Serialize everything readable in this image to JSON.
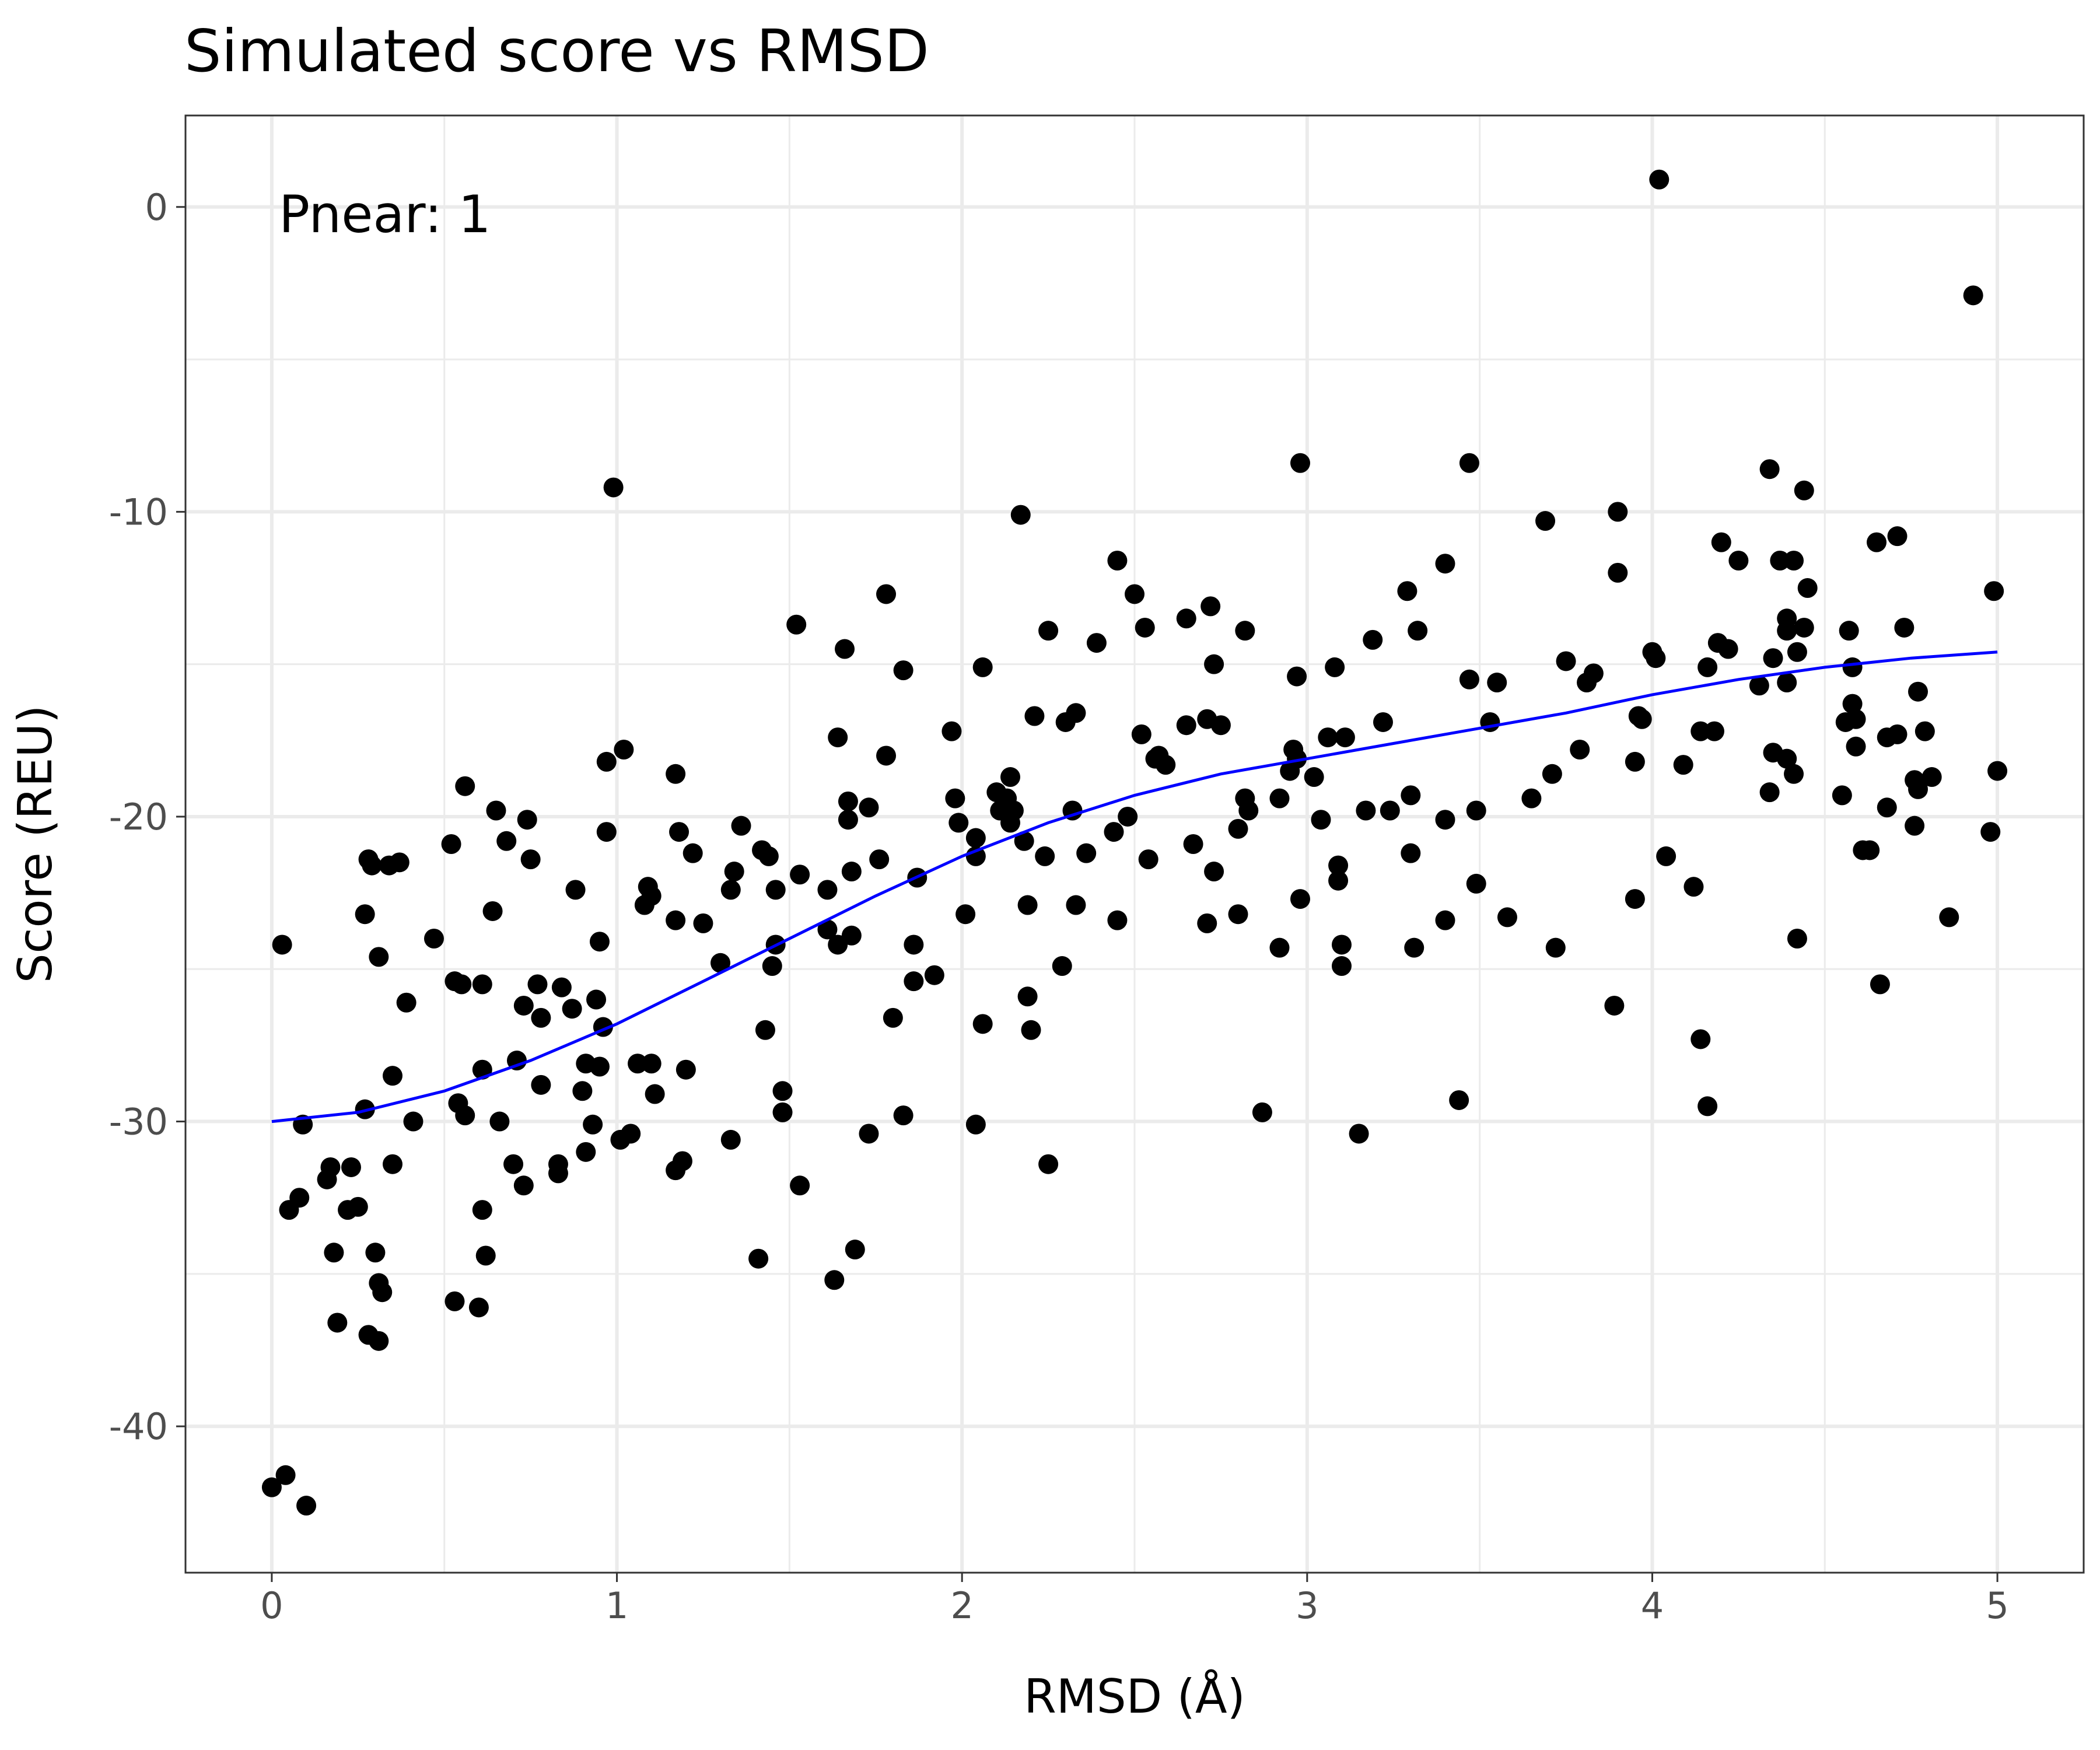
{
  "chart_data": {
    "type": "scatter",
    "title": "Simulated score vs RMSD",
    "xlabel": "RMSD (Å)",
    "ylabel": "Score (REU)",
    "annotation": "Pnear: 1",
    "xlim": [
      -0.25,
      5.25
    ],
    "ylim": [
      -44.8,
      3.0
    ],
    "x_ticks": [
      0,
      1,
      2,
      3,
      4,
      5
    ],
    "x_tick_labels": [
      "0",
      "1",
      "2",
      "3",
      "4",
      "5"
    ],
    "y_ticks": [
      -40,
      -30,
      -20,
      -10,
      0
    ],
    "y_tick_labels": [
      "-40",
      "-30",
      "-20",
      "-10",
      "0"
    ],
    "grid": true,
    "point_color": "#000000",
    "curve_color": "#0000ff",
    "points": [
      [
        0.0,
        -42.0
      ],
      [
        0.04,
        -41.6
      ],
      [
        0.1,
        -42.6
      ],
      [
        0.03,
        -24.2
      ],
      [
        0.05,
        -32.9
      ],
      [
        0.08,
        -32.5
      ],
      [
        0.09,
        -30.1
      ],
      [
        0.16,
        -31.9
      ],
      [
        0.17,
        -31.5
      ],
      [
        0.18,
        -34.3
      ],
      [
        0.19,
        -36.6
      ],
      [
        0.22,
        -32.9
      ],
      [
        0.23,
        -31.5
      ],
      [
        0.25,
        -32.8
      ],
      [
        0.27,
        -23.2
      ],
      [
        0.27,
        -29.6
      ],
      [
        0.28,
        -21.4
      ],
      [
        0.29,
        -21.6
      ],
      [
        0.28,
        -37.0
      ],
      [
        0.31,
        -37.2
      ],
      [
        0.3,
        -34.3
      ],
      [
        0.31,
        -24.6
      ],
      [
        0.31,
        -35.3
      ],
      [
        0.32,
        -35.6
      ],
      [
        0.34,
        -21.6
      ],
      [
        0.35,
        -31.4
      ],
      [
        0.35,
        -28.5
      ],
      [
        0.37,
        -21.5
      ],
      [
        0.39,
        -26.1
      ],
      [
        0.41,
        -30.0
      ],
      [
        0.47,
        -24.0
      ],
      [
        0.52,
        -20.9
      ],
      [
        0.53,
        -25.4
      ],
      [
        0.53,
        -35.9
      ],
      [
        0.54,
        -29.4
      ],
      [
        0.55,
        -25.5
      ],
      [
        0.56,
        -19.0
      ],
      [
        0.56,
        -29.8
      ],
      [
        0.6,
        -36.1
      ],
      [
        0.61,
        -32.9
      ],
      [
        0.61,
        -28.3
      ],
      [
        0.61,
        -25.5
      ],
      [
        0.62,
        -34.4
      ],
      [
        0.64,
        -23.1
      ],
      [
        0.65,
        -19.8
      ],
      [
        0.66,
        -30.0
      ],
      [
        0.68,
        -20.8
      ],
      [
        0.7,
        -31.4
      ],
      [
        0.71,
        -28.0
      ],
      [
        0.73,
        -26.2
      ],
      [
        0.73,
        -32.1
      ],
      [
        0.74,
        -20.1
      ],
      [
        0.75,
        -21.4
      ],
      [
        0.77,
        -25.5
      ],
      [
        0.78,
        -26.6
      ],
      [
        0.78,
        -28.8
      ],
      [
        0.83,
        -31.4
      ],
      [
        0.83,
        -31.7
      ],
      [
        0.84,
        -25.6
      ],
      [
        0.87,
        -26.3
      ],
      [
        0.88,
        -22.4
      ],
      [
        0.9,
        -29.0
      ],
      [
        0.91,
        -28.1
      ],
      [
        0.91,
        -31.0
      ],
      [
        0.93,
        -30.1
      ],
      [
        0.94,
        -26.0
      ],
      [
        0.95,
        -24.1
      ],
      [
        0.95,
        -28.2
      ],
      [
        0.96,
        -26.9
      ],
      [
        0.97,
        -18.2
      ],
      [
        0.97,
        -20.5
      ],
      [
        0.99,
        -9.2
      ],
      [
        1.01,
        -30.6
      ],
      [
        1.02,
        -17.8
      ],
      [
        1.04,
        -30.4
      ],
      [
        1.06,
        -28.1
      ],
      [
        1.08,
        -22.9
      ],
      [
        1.09,
        -22.3
      ],
      [
        1.1,
        -22.6
      ],
      [
        1.1,
        -28.1
      ],
      [
        1.11,
        -29.1
      ],
      [
        1.17,
        -18.6
      ],
      [
        1.17,
        -23.4
      ],
      [
        1.17,
        -31.6
      ],
      [
        1.18,
        -20.5
      ],
      [
        1.19,
        -31.3
      ],
      [
        1.2,
        -28.3
      ],
      [
        1.22,
        -21.2
      ],
      [
        1.25,
        -23.5
      ],
      [
        1.3,
        -24.8
      ],
      [
        1.33,
        -22.4
      ],
      [
        1.33,
        -30.6
      ],
      [
        1.34,
        -21.8
      ],
      [
        1.36,
        -20.3
      ],
      [
        1.41,
        -34.5
      ],
      [
        1.42,
        -21.1
      ],
      [
        1.43,
        -27.0
      ],
      [
        1.44,
        -21.3
      ],
      [
        1.45,
        -24.9
      ],
      [
        1.46,
        -22.4
      ],
      [
        1.46,
        -24.2
      ],
      [
        1.48,
        -29.0
      ],
      [
        1.48,
        -29.7
      ],
      [
        1.52,
        -13.7
      ],
      [
        1.53,
        -21.9
      ],
      [
        1.53,
        -32.1
      ],
      [
        1.61,
        -22.4
      ],
      [
        1.61,
        -23.7
      ],
      [
        1.63,
        -35.2
      ],
      [
        1.64,
        -17.4
      ],
      [
        1.64,
        -24.2
      ],
      [
        1.66,
        -14.5
      ],
      [
        1.67,
        -19.5
      ],
      [
        1.67,
        -20.1
      ],
      [
        1.68,
        -23.9
      ],
      [
        1.68,
        -21.8
      ],
      [
        1.69,
        -34.2
      ],
      [
        1.73,
        -19.7
      ],
      [
        1.73,
        -30.4
      ],
      [
        1.76,
        -21.4
      ],
      [
        1.78,
        -12.7
      ],
      [
        1.78,
        -18.0
      ],
      [
        1.8,
        -26.6
      ],
      [
        1.83,
        -15.2
      ],
      [
        1.83,
        -29.8
      ],
      [
        1.86,
        -24.2
      ],
      [
        1.86,
        -25.4
      ],
      [
        1.87,
        -22.0
      ],
      [
        1.92,
        -25.2
      ],
      [
        1.97,
        -17.2
      ],
      [
        1.98,
        -19.4
      ],
      [
        1.99,
        -20.2
      ],
      [
        2.01,
        -23.2
      ],
      [
        2.04,
        -30.1
      ],
      [
        2.04,
        -21.3
      ],
      [
        2.04,
        -20.7
      ],
      [
        2.06,
        -15.1
      ],
      [
        2.06,
        -26.8
      ],
      [
        2.1,
        -19.2
      ],
      [
        2.11,
        -19.8
      ],
      [
        2.13,
        -19.4
      ],
      [
        2.14,
        -18.7
      ],
      [
        2.14,
        -20.2
      ],
      [
        2.15,
        -19.8
      ],
      [
        2.17,
        -10.1
      ],
      [
        2.18,
        -20.8
      ],
      [
        2.19,
        -22.9
      ],
      [
        2.19,
        -25.9
      ],
      [
        2.2,
        -27.0
      ],
      [
        2.21,
        -16.7
      ],
      [
        2.24,
        -21.3
      ],
      [
        2.25,
        -31.4
      ],
      [
        2.25,
        -13.9
      ],
      [
        2.29,
        -24.9
      ],
      [
        2.3,
        -16.9
      ],
      [
        2.32,
        -19.8
      ],
      [
        2.33,
        -16.6
      ],
      [
        2.33,
        -22.9
      ],
      [
        2.36,
        -21.2
      ],
      [
        2.39,
        -14.3
      ],
      [
        2.44,
        -20.5
      ],
      [
        2.45,
        -11.6
      ],
      [
        2.45,
        -23.4
      ],
      [
        2.48,
        -20.0
      ],
      [
        2.5,
        -12.7
      ],
      [
        2.52,
        -17.3
      ],
      [
        2.53,
        -13.8
      ],
      [
        2.54,
        -21.4
      ],
      [
        2.56,
        -18.1
      ],
      [
        2.57,
        -18.0
      ],
      [
        2.59,
        -18.3
      ],
      [
        2.65,
        -13.5
      ],
      [
        2.65,
        -17.0
      ],
      [
        2.67,
        -20.9
      ],
      [
        2.71,
        -23.5
      ],
      [
        2.71,
        -16.8
      ],
      [
        2.72,
        -13.1
      ],
      [
        2.73,
        -21.8
      ],
      [
        2.73,
        -15.0
      ],
      [
        2.75,
        -17.0
      ],
      [
        2.8,
        -20.4
      ],
      [
        2.8,
        -23.2
      ],
      [
        2.82,
        -13.9
      ],
      [
        2.82,
        -19.4
      ],
      [
        2.83,
        -19.8
      ],
      [
        2.87,
        -29.7
      ],
      [
        2.92,
        -19.4
      ],
      [
        2.92,
        -24.3
      ],
      [
        2.95,
        -18.5
      ],
      [
        2.96,
        -17.8
      ],
      [
        2.97,
        -15.4
      ],
      [
        2.97,
        -18.1
      ],
      [
        2.98,
        -8.4
      ],
      [
        2.98,
        -22.7
      ],
      [
        3.02,
        -18.7
      ],
      [
        3.04,
        -20.1
      ],
      [
        3.06,
        -17.4
      ],
      [
        3.08,
        -15.1
      ],
      [
        3.09,
        -21.6
      ],
      [
        3.09,
        -22.1
      ],
      [
        3.1,
        -24.2
      ],
      [
        3.1,
        -24.9
      ],
      [
        3.11,
        -17.4
      ],
      [
        3.15,
        -30.4
      ],
      [
        3.17,
        -19.8
      ],
      [
        3.19,
        -14.2
      ],
      [
        3.22,
        -16.9
      ],
      [
        3.24,
        -19.8
      ],
      [
        3.29,
        -12.6
      ],
      [
        3.3,
        -19.3
      ],
      [
        3.3,
        -21.2
      ],
      [
        3.31,
        -24.3
      ],
      [
        3.32,
        -13.9
      ],
      [
        3.4,
        -11.7
      ],
      [
        3.4,
        -20.1
      ],
      [
        3.4,
        -23.4
      ],
      [
        3.44,
        -29.3
      ],
      [
        3.47,
        -8.4
      ],
      [
        3.47,
        -15.5
      ],
      [
        3.49,
        -19.8
      ],
      [
        3.49,
        -22.2
      ],
      [
        3.53,
        -16.9
      ],
      [
        3.55,
        -15.6
      ],
      [
        3.58,
        -23.3
      ],
      [
        3.65,
        -19.4
      ],
      [
        3.69,
        -10.3
      ],
      [
        3.71,
        -18.6
      ],
      [
        3.72,
        -24.3
      ],
      [
        3.75,
        -14.9
      ],
      [
        3.79,
        -17.8
      ],
      [
        3.81,
        -15.6
      ],
      [
        3.83,
        -15.3
      ],
      [
        3.89,
        -26.2
      ],
      [
        3.9,
        -12.0
      ],
      [
        3.9,
        -10.0
      ],
      [
        3.95,
        -18.2
      ],
      [
        3.95,
        -22.7
      ],
      [
        3.96,
        -16.7
      ],
      [
        3.97,
        -16.8
      ],
      [
        4.0,
        -14.6
      ],
      [
        4.01,
        -14.8
      ],
      [
        4.02,
        0.9
      ],
      [
        4.04,
        -21.3
      ],
      [
        4.09,
        -18.3
      ],
      [
        4.12,
        -22.3
      ],
      [
        4.14,
        -27.3
      ],
      [
        4.14,
        -17.2
      ],
      [
        4.16,
        -15.1
      ],
      [
        4.16,
        -29.5
      ],
      [
        4.18,
        -17.2
      ],
      [
        4.19,
        -14.3
      ],
      [
        4.2,
        -11.0
      ],
      [
        4.22,
        -14.5
      ],
      [
        4.25,
        -11.6
      ],
      [
        4.31,
        -15.7
      ],
      [
        4.34,
        -8.6
      ],
      [
        4.34,
        -19.2
      ],
      [
        4.35,
        -14.8
      ],
      [
        4.35,
        -17.9
      ],
      [
        4.37,
        -11.6
      ],
      [
        4.39,
        -18.1
      ],
      [
        4.39,
        -13.5
      ],
      [
        4.39,
        -13.9
      ],
      [
        4.39,
        -15.6
      ],
      [
        4.41,
        -11.6
      ],
      [
        4.41,
        -18.6
      ],
      [
        4.42,
        -14.6
      ],
      [
        4.42,
        -24.0
      ],
      [
        4.44,
        -9.3
      ],
      [
        4.44,
        -13.8
      ],
      [
        4.45,
        -12.5
      ],
      [
        4.55,
        -19.3
      ],
      [
        4.56,
        -16.9
      ],
      [
        4.57,
        -13.9
      ],
      [
        4.58,
        -15.1
      ],
      [
        4.58,
        -16.3
      ],
      [
        4.59,
        -16.8
      ],
      [
        4.59,
        -17.7
      ],
      [
        4.61,
        -21.1
      ],
      [
        4.63,
        -21.1
      ],
      [
        4.65,
        -11.0
      ],
      [
        4.66,
        -25.5
      ],
      [
        4.68,
        -17.4
      ],
      [
        4.68,
        -19.7
      ],
      [
        4.71,
        -10.8
      ],
      [
        4.71,
        -17.3
      ],
      [
        4.73,
        -13.8
      ],
      [
        4.76,
        -18.8
      ],
      [
        4.76,
        -20.3
      ],
      [
        4.77,
        -15.9
      ],
      [
        4.77,
        -19.1
      ],
      [
        4.79,
        -17.2
      ],
      [
        4.81,
        -18.7
      ],
      [
        4.86,
        -23.3
      ],
      [
        4.93,
        -2.9
      ],
      [
        4.98,
        -20.5
      ],
      [
        4.99,
        -12.6
      ],
      [
        5.0,
        -18.5
      ]
    ],
    "fit_curve": {
      "x": [
        0.0,
        0.25,
        0.5,
        0.75,
        1.0,
        1.25,
        1.5,
        1.75,
        2.0,
        2.25,
        2.5,
        2.75,
        3.0,
        3.25,
        3.5,
        3.75,
        4.0,
        4.25,
        4.5,
        4.75,
        5.0
      ],
      "y": [
        -30.0,
        -29.7,
        -29.0,
        -28.0,
        -26.8,
        -25.4,
        -24.0,
        -22.6,
        -21.3,
        -20.2,
        -19.3,
        -18.6,
        -18.1,
        -17.6,
        -17.1,
        -16.6,
        -16.0,
        -15.5,
        -15.1,
        -14.8,
        -14.6
      ]
    }
  }
}
